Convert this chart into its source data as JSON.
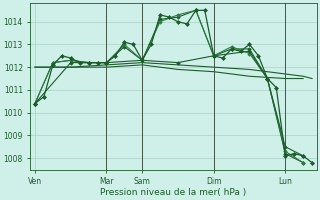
{
  "background_color": "#cff0e8",
  "grid_color": "#b0d8cc",
  "line_color_dark": "#1a5c2a",
  "line_color_medium": "#2e7d42",
  "xlabel": "Pression niveau de la mer( hPa )",
  "ylim": [
    1007.5,
    1014.8
  ],
  "yticks": [
    1008,
    1009,
    1010,
    1011,
    1012,
    1013,
    1014
  ],
  "day_labels": [
    "Ven",
    "Mar",
    "Sam",
    "Dim",
    "Lun"
  ],
  "day_positions": [
    0,
    8,
    12,
    20,
    28
  ],
  "vline_positions": [
    8,
    12,
    20,
    28
  ],
  "vline_color": "#445544",
  "xlim": [
    -0.5,
    31.5
  ],
  "series": [
    {
      "x": [
        0,
        1,
        2,
        3,
        4,
        5,
        6,
        7,
        8,
        9,
        10,
        11,
        12,
        13,
        14,
        15,
        16,
        17,
        18,
        19,
        20,
        21,
        22,
        23,
        24,
        25,
        26,
        27,
        28,
        29,
        30,
        31
      ],
      "y": [
        1010.4,
        1010.7,
        1012.1,
        1012.5,
        1012.4,
        1012.2,
        1012.2,
        1012.2,
        1012.2,
        1012.5,
        1013.1,
        1013.0,
        1012.3,
        1013.0,
        1014.3,
        1014.2,
        1014.0,
        1013.9,
        1014.5,
        1014.5,
        1012.5,
        1012.4,
        1012.8,
        1012.7,
        1013.0,
        1012.5,
        1011.5,
        1011.1,
        1008.1,
        1008.2,
        1008.1,
        1007.8
      ],
      "color": "#1a5c2a",
      "lw": 0.9,
      "marker": "D",
      "ms": 2.0,
      "zorder": 5
    },
    {
      "x": [
        0,
        2,
        4,
        6,
        8,
        10,
        12,
        14,
        16,
        18,
        20,
        22,
        24,
        26,
        28,
        30
      ],
      "y": [
        1010.4,
        1012.2,
        1012.3,
        1012.2,
        1012.2,
        1012.9,
        1012.3,
        1014.1,
        1014.2,
        1014.5,
        1012.5,
        1012.8,
        1012.8,
        1011.5,
        1008.2,
        1007.8
      ],
      "color": "#1a5c2a",
      "lw": 0.8,
      "marker": "D",
      "ms": 1.8,
      "zorder": 4
    },
    {
      "x": [
        0,
        2,
        4,
        6,
        8,
        10,
        12,
        14,
        16,
        18,
        20,
        22,
        24,
        26,
        28,
        30
      ],
      "y": [
        1010.4,
        1012.2,
        1012.3,
        1012.2,
        1012.2,
        1013.0,
        1012.3,
        1014.0,
        1014.3,
        1014.5,
        1012.5,
        1012.9,
        1012.6,
        1011.5,
        1008.3,
        1007.8
      ],
      "color": "#2e7d42",
      "lw": 0.8,
      "marker": "D",
      "ms": 1.8,
      "zorder": 4
    },
    {
      "x": [
        0,
        4,
        8,
        12,
        16,
        20,
        24,
        28,
        30
      ],
      "y": [
        1012.0,
        1012.0,
        1012.0,
        1012.1,
        1011.9,
        1011.8,
        1011.6,
        1011.5,
        1011.5
      ],
      "color": "#1a5c2a",
      "lw": 0.8,
      "marker": null,
      "ms": 0,
      "zorder": 3
    },
    {
      "x": [
        0,
        4,
        8,
        12,
        16,
        20,
        24,
        26,
        28,
        30,
        31
      ],
      "y": [
        1012.0,
        1012.0,
        1012.1,
        1012.2,
        1012.1,
        1012.0,
        1011.9,
        1011.8,
        1011.7,
        1011.6,
        1011.5
      ],
      "color": "#1a5c2a",
      "lw": 0.8,
      "marker": null,
      "ms": 0,
      "zorder": 3
    },
    {
      "x": [
        0,
        4,
        8,
        12,
        16,
        20,
        24,
        26,
        28,
        30
      ],
      "y": [
        1010.4,
        1012.2,
        1012.2,
        1012.3,
        1012.2,
        1012.5,
        1012.7,
        1011.5,
        1008.5,
        1008.1
      ],
      "color": "#1a5c2a",
      "lw": 0.8,
      "marker": "D",
      "ms": 1.8,
      "zorder": 4
    }
  ]
}
